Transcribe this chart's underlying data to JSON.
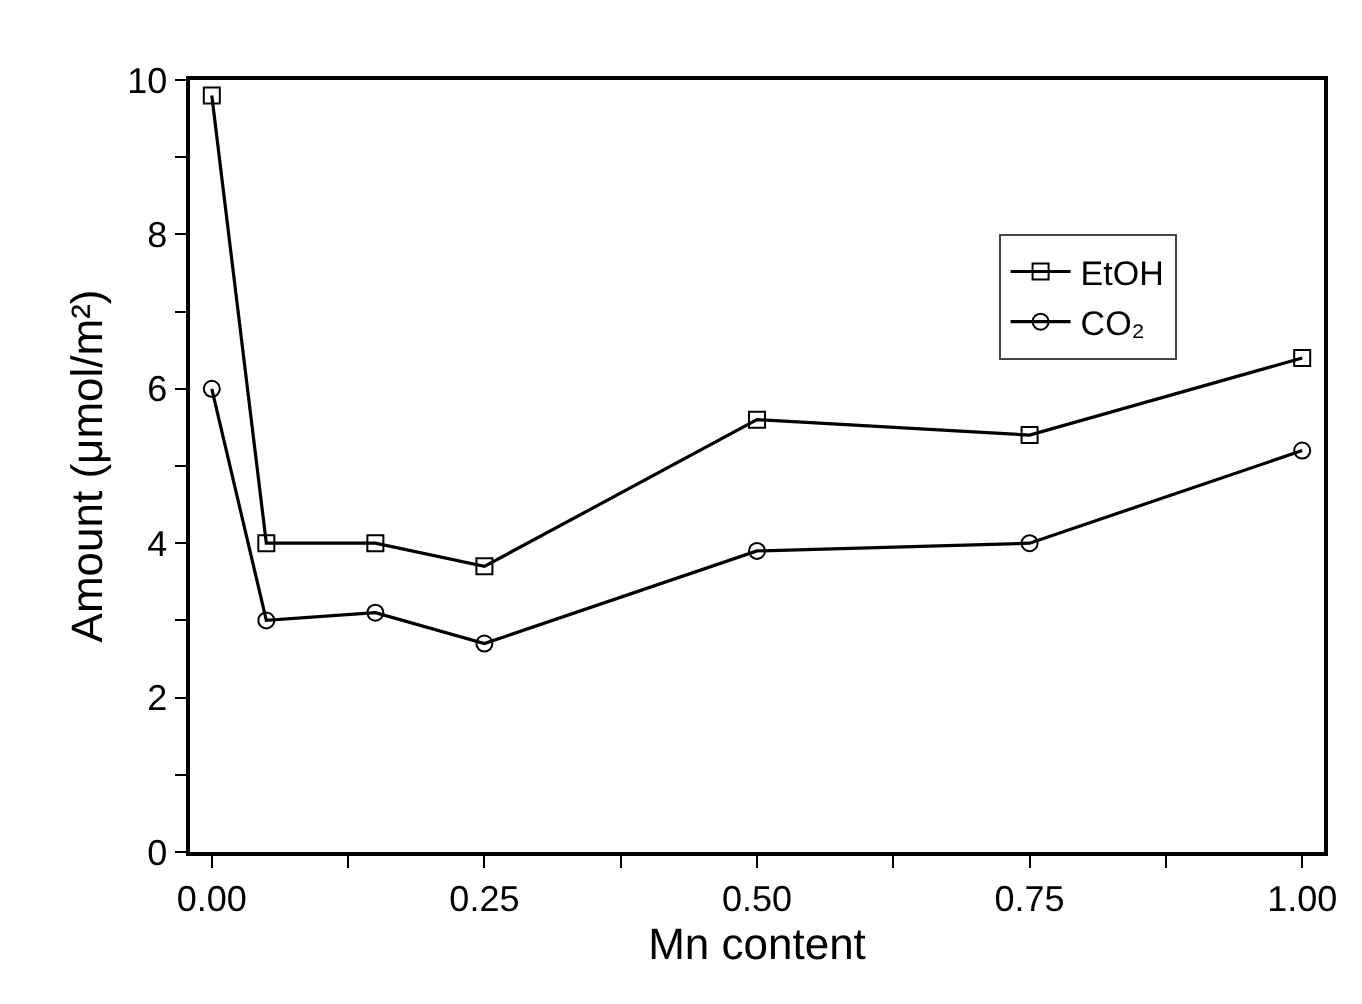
{
  "chart_data": {
    "type": "line",
    "xlabel": "Mn content",
    "ylabel": "Amount (μmol/m²)",
    "x": [
      0,
      0.05,
      0.15,
      0.25,
      0.5,
      0.75,
      1.0
    ],
    "series": [
      {
        "name": "EtOH",
        "color": "#000000",
        "marker": "square",
        "values": [
          9.8,
          4.0,
          4.0,
          3.7,
          5.6,
          5.4,
          6.4
        ]
      },
      {
        "name": "CO₂",
        "color": "#000000",
        "marker": "circle",
        "values": [
          6.0,
          3.0,
          3.1,
          2.7,
          3.9,
          4.0,
          5.2
        ]
      }
    ],
    "xlim": [
      -0.02,
      1.02
    ],
    "ylim": [
      0,
      10
    ],
    "xticks": [
      {
        "value": 0,
        "label": "0.00"
      },
      {
        "value": 0.125,
        "label": null
      },
      {
        "value": 0.25,
        "label": "0.25"
      },
      {
        "value": 0.375,
        "label": null
      },
      {
        "value": 0.5,
        "label": "0.50"
      },
      {
        "value": 0.625,
        "label": null
      },
      {
        "value": 0.75,
        "label": "0.75"
      },
      {
        "value": 0.875,
        "label": null
      },
      {
        "value": 1,
        "label": "1.00"
      }
    ],
    "yticks": [
      0,
      {
        "value": 1,
        "label": null
      },
      2,
      {
        "value": 3,
        "label": null
      },
      4,
      {
        "value": 5,
        "label": null
      },
      6,
      {
        "value": 7,
        "label": null
      },
      8,
      {
        "value": 9,
        "label": null
      },
      10
    ],
    "legend": "top right",
    "line_style": "solid"
  }
}
